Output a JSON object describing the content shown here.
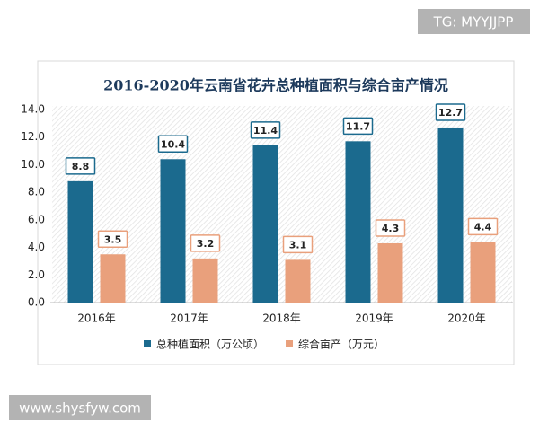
{
  "chart_data": {
    "type": "bar",
    "title": "2016-2020年云南省花卉总种植面积与综合亩产情况",
    "categories": [
      "2016年",
      "2017年",
      "2018年",
      "2019年",
      "2020年"
    ],
    "series": [
      {
        "name": "总种植面积（万公顷）",
        "color": "#1b6a8e",
        "values": [
          8.8,
          10.4,
          11.4,
          11.7,
          12.7
        ]
      },
      {
        "name": "综合亩产（万元）",
        "color": "#e9a07c",
        "values": [
          3.5,
          3.2,
          3.1,
          4.3,
          4.4
        ]
      }
    ],
    "ylim": [
      0,
      14
    ],
    "yticks": [
      {
        "value": 0,
        "label": "0.0"
      },
      {
        "value": 2,
        "label": "2.0"
      },
      {
        "value": 4,
        "label": "4.0"
      },
      {
        "value": 6,
        "label": "6.0"
      },
      {
        "value": 8,
        "label": "8.0"
      },
      {
        "value": 10,
        "label": "10.0"
      },
      {
        "value": 12,
        "label": "12.0"
      },
      {
        "value": 14,
        "label": "14.0"
      }
    ],
    "grid": false,
    "legend": "bottom"
  },
  "watermarks": [
    "TG: MYYJJPP",
    "www.shysfyw.com"
  ]
}
